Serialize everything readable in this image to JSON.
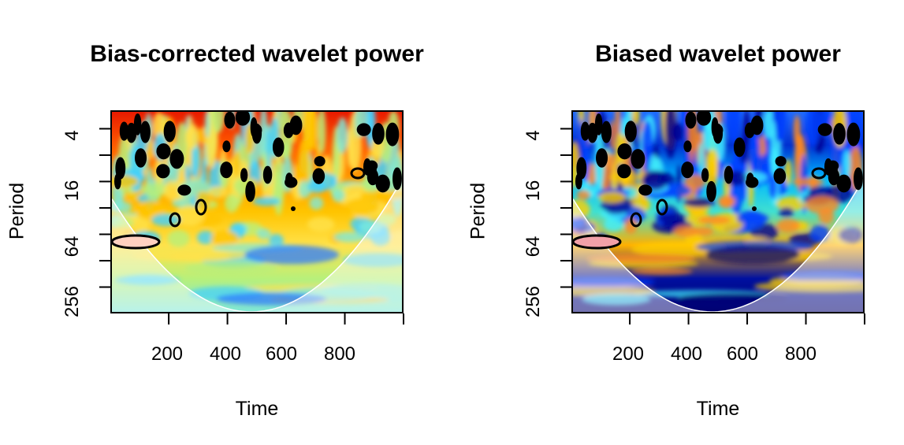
{
  "chart_data": [
    {
      "type": "heatmap",
      "title": "Bias-corrected wavelet power",
      "xlabel": "Time",
      "ylabel": "Period",
      "xlim": [
        1,
        1000
      ],
      "ylim_log2": [
        1.3,
        9
      ],
      "xticks": [
        200,
        400,
        600,
        800
      ],
      "yticks": [
        "4",
        "16",
        "64",
        "256"
      ],
      "yticks_log2": [
        2,
        4,
        6,
        8
      ],
      "palette": "bias-corrected",
      "colors": {
        "high": "#e81a00",
        "mid": "#ffb300",
        "low": "#7fe8d8",
        "coi_line": "#ffffff",
        "contour": "#000000"
      }
    },
    {
      "type": "heatmap",
      "title": "Biased wavelet power",
      "xlabel": "Time",
      "ylabel": "Period",
      "xlim": [
        1,
        1000
      ],
      "ylim_log2": [
        1.3,
        9
      ],
      "xticks": [
        200,
        400,
        600,
        800
      ],
      "yticks": [
        "4",
        "16",
        "64",
        "256"
      ],
      "yticks_log2": [
        2,
        4,
        6,
        8
      ],
      "palette": "biased",
      "colors": {
        "high": "#ff7a30",
        "mid": "#3fd8ff",
        "low": "#000070",
        "coi_line": "#ffffff",
        "contour": "#000000"
      }
    }
  ]
}
